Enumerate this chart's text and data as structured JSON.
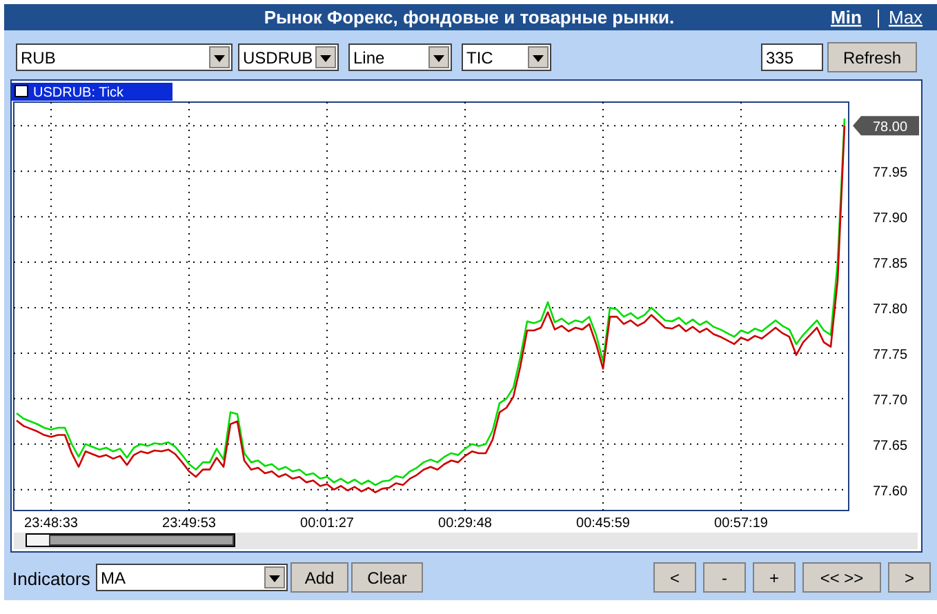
{
  "chart_data": {
    "type": "line",
    "title": "Рынок Форекс, фондовые и товарные рынки.",
    "subtitle": "USDRUB: Tick",
    "annotations": [
      "Min",
      "Max",
      "RUB",
      "USDRUB",
      "Line",
      "TIC",
      "335",
      "Refresh",
      "Indicators",
      "MA",
      "Add",
      "Clear",
      "<",
      "-",
      "+",
      "<< >>",
      ">"
    ],
    "categories": [
      null,
      null,
      null,
      null,
      null,
      "23:48:33",
      null,
      null,
      null,
      null,
      null,
      null,
      null,
      null,
      null,
      null,
      null,
      null,
      null,
      null,
      null,
      null,
      null,
      null,
      null,
      "23:49:53",
      null,
      null,
      null,
      null,
      null,
      null,
      null,
      null,
      null,
      null,
      null,
      null,
      null,
      null,
      null,
      null,
      null,
      null,
      null,
      "00:01:27",
      null,
      null,
      null,
      null,
      null,
      null,
      null,
      null,
      null,
      null,
      null,
      null,
      null,
      null,
      null,
      null,
      null,
      null,
      null,
      "00:29:48",
      null,
      null,
      null,
      null,
      null,
      null,
      null,
      null,
      null,
      null,
      null,
      null,
      null,
      null,
      null,
      null,
      null,
      null,
      null,
      "00:45:59",
      null,
      null,
      null,
      null,
      null,
      null,
      null,
      null,
      null,
      null,
      null,
      null,
      null,
      null,
      null,
      null,
      null,
      null,
      null,
      "00:57:19",
      null,
      null,
      null,
      null,
      null,
      null,
      null,
      null,
      null,
      null,
      null,
      null,
      null,
      null,
      null
    ],
    "series": [
      {
        "color": "#00dd00",
        "values": [
          77.684,
          77.678,
          77.675,
          77.672,
          77.668,
          77.666,
          77.668,
          77.668,
          77.65,
          77.636,
          77.65,
          77.647,
          77.644,
          77.646,
          77.642,
          77.645,
          77.635,
          77.646,
          77.65,
          77.648,
          77.651,
          77.65,
          77.652,
          77.647,
          77.638,
          77.628,
          77.622,
          77.63,
          77.63,
          77.645,
          77.633,
          77.685,
          77.683,
          77.64,
          77.63,
          77.632,
          77.626,
          77.628,
          77.622,
          77.625,
          77.62,
          77.622,
          77.616,
          77.618,
          77.612,
          77.614,
          77.608,
          77.612,
          77.607,
          77.611,
          77.606,
          77.61,
          77.605,
          77.609,
          77.61,
          77.615,
          77.613,
          77.62,
          77.624,
          77.63,
          77.633,
          77.63,
          77.636,
          77.64,
          77.638,
          77.645,
          77.65,
          77.648,
          77.65,
          77.665,
          77.695,
          77.7,
          77.712,
          77.745,
          77.785,
          77.783,
          77.786,
          77.806,
          77.784,
          77.788,
          77.782,
          77.786,
          77.784,
          77.79,
          77.77,
          77.741,
          77.8,
          77.798,
          77.79,
          77.794,
          77.788,
          77.792,
          77.8,
          77.793,
          77.786,
          77.785,
          77.789,
          77.782,
          77.787,
          77.781,
          77.785,
          77.779,
          77.776,
          77.772,
          77.768,
          77.775,
          77.772,
          77.777,
          77.774,
          77.78,
          77.786,
          77.78,
          77.776,
          77.76,
          77.77,
          77.778,
          77.786,
          77.775,
          77.77,
          77.85,
          78.008
        ]
      },
      {
        "color": "#cc0000",
        "values": [
          77.676,
          77.67,
          77.667,
          77.664,
          77.66,
          77.658,
          77.66,
          77.66,
          77.64,
          77.625,
          77.642,
          77.639,
          77.636,
          77.638,
          77.634,
          77.637,
          77.627,
          77.638,
          77.642,
          77.64,
          77.643,
          77.642,
          77.644,
          77.639,
          77.63,
          77.62,
          77.614,
          77.622,
          77.622,
          77.635,
          77.625,
          77.672,
          77.675,
          77.632,
          77.622,
          77.624,
          77.618,
          77.62,
          77.614,
          77.617,
          77.612,
          77.614,
          77.608,
          77.61,
          77.604,
          77.606,
          77.6,
          77.604,
          77.599,
          77.603,
          77.598,
          77.602,
          77.597,
          77.601,
          77.602,
          77.607,
          77.605,
          77.612,
          77.616,
          77.622,
          77.625,
          77.622,
          77.628,
          77.632,
          77.63,
          77.637,
          77.642,
          77.64,
          77.64,
          77.655,
          77.685,
          77.69,
          77.702,
          77.735,
          77.775,
          77.775,
          77.778,
          77.795,
          77.776,
          77.78,
          77.774,
          77.778,
          77.776,
          77.782,
          77.76,
          77.733,
          77.79,
          77.79,
          77.782,
          77.786,
          77.78,
          77.784,
          77.792,
          77.785,
          77.778,
          77.777,
          77.781,
          77.774,
          77.779,
          77.773,
          77.777,
          77.771,
          77.768,
          77.764,
          77.76,
          77.767,
          77.764,
          77.769,
          77.766,
          77.772,
          77.778,
          77.772,
          77.768,
          77.748,
          77.762,
          77.77,
          77.778,
          77.762,
          77.757,
          77.83,
          78.0
        ]
      }
    ],
    "ylim": [
      77.577,
      78.026
    ],
    "yticks": [
      {
        "value": 77.6,
        "label": "77.60"
      },
      {
        "value": 77.65,
        "label": "77.65"
      },
      {
        "value": 77.7,
        "label": "77.70"
      },
      {
        "value": 77.75,
        "label": "77.75"
      },
      {
        "value": 77.8,
        "label": "77.80"
      },
      {
        "value": 77.85,
        "label": "77.85"
      },
      {
        "value": 77.9,
        "label": "77.90"
      },
      {
        "value": 77.95,
        "label": "77.95"
      },
      {
        "value": 78,
        "label": "78.00"
      }
    ],
    "grid": true,
    "line_style": "solid"
  }
}
